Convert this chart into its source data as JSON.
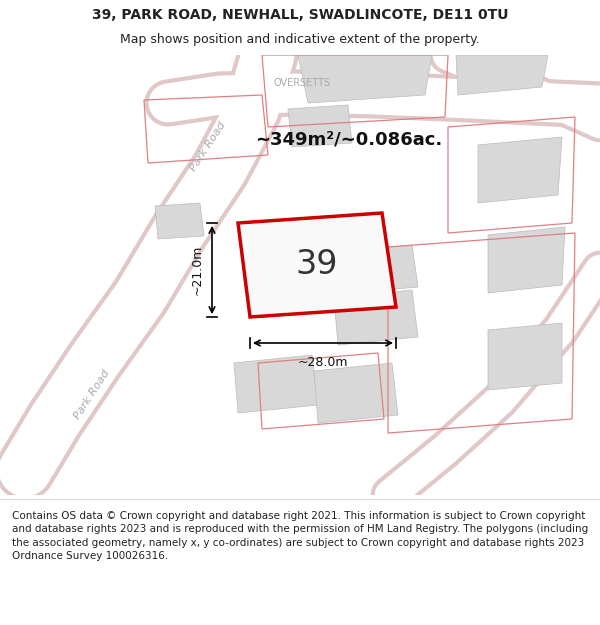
{
  "title_line1": "39, PARK ROAD, NEWHALL, SWADLINCOTE, DE11 0TU",
  "title_line2": "Map shows position and indicative extent of the property.",
  "footer_text": "Contains OS data © Crown copyright and database right 2021. This information is subject to Crown copyright and database rights 2023 and is reproduced with the permission of HM Land Registry. The polygons (including the associated geometry, namely x, y co-ordinates) are subject to Crown copyright and database rights 2023 Ordnance Survey 100026316.",
  "map_bg": "#f2f2f2",
  "building_fill": "#d8d8d8",
  "building_outline": "#bbbbbb",
  "pink_outline": "#e08080",
  "red_outline": "#cc0000",
  "road_fill": "#ffffff",
  "road_edge": "#e0c8c8",
  "road_label_color": "#aaaaaa",
  "area_label": "~349m²/~0.086ac.",
  "property_number": "39",
  "dim_width": "~28.0m",
  "dim_height": "~21.0m",
  "oversetts_label": "OVERSETTS",
  "park_road_label": "Park Road",
  "title_fontsize": 10,
  "subtitle_fontsize": 9,
  "footer_fontsize": 7.5,
  "title_color": "#222222",
  "footer_color": "#222222"
}
